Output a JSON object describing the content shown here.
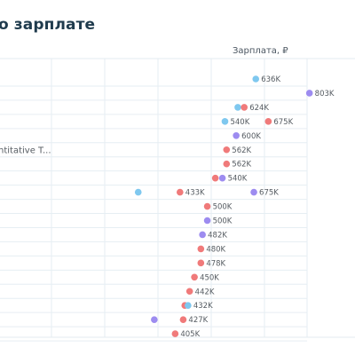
{
  "title": "о зарплате",
  "chart_data": {
    "type": "scatter",
    "title": "о зарплате",
    "xlabel": "Зарплата, ₽",
    "ylabel": "",
    "xlim": [
      0,
      1000000
    ],
    "grid": true,
    "colors": {
      "red": "#f07a7a",
      "blue": "#7fc8ef",
      "purple": "#9d8cf0"
    },
    "rows": [
      {
        "category": "",
        "label": "636K",
        "points": [
          {
            "value": 636000,
            "color": "blue"
          }
        ]
      },
      {
        "category": "",
        "label": "803K",
        "points": [
          {
            "value": 803000,
            "color": "purple"
          }
        ]
      },
      {
        "category": "",
        "label": "624K",
        "points": [
          {
            "value": 580000,
            "color": "blue"
          },
          {
            "value": 600000,
            "color": "red"
          }
        ]
      },
      {
        "category": "",
        "label": "675K",
        "extra_label": "540K",
        "points": [
          {
            "value": 540000,
            "color": "blue"
          },
          {
            "value": 675000,
            "color": "red"
          }
        ]
      },
      {
        "category": "",
        "label": "600K",
        "points": [
          {
            "value": 575000,
            "color": "purple"
          }
        ]
      },
      {
        "category": "ntitative T...",
        "label": "562K",
        "points": [
          {
            "value": 545000,
            "color": "red"
          }
        ]
      },
      {
        "category": "",
        "label": "562K",
        "points": [
          {
            "value": 545000,
            "color": "red"
          }
        ]
      },
      {
        "category": "",
        "label": "540K",
        "points": [
          {
            "value": 510000,
            "color": "red"
          },
          {
            "value": 532000,
            "color": "purple"
          }
        ]
      },
      {
        "category": "",
        "label": "675K",
        "extra_label": "433K",
        "points": [
          {
            "value": 270000,
            "color": "blue"
          },
          {
            "value": 400000,
            "color": "red"
          },
          {
            "value": 630000,
            "color": "purple"
          }
        ]
      },
      {
        "category": "",
        "label": "500K",
        "points": [
          {
            "value": 485000,
            "color": "red"
          }
        ]
      },
      {
        "category": "",
        "label": "500K",
        "points": [
          {
            "value": 485000,
            "color": "purple"
          }
        ]
      },
      {
        "category": "",
        "label": "482K",
        "points": [
          {
            "value": 470000,
            "color": "purple"
          }
        ]
      },
      {
        "category": "",
        "label": "480K",
        "points": [
          {
            "value": 465000,
            "color": "red"
          }
        ]
      },
      {
        "category": "",
        "label": "478K",
        "points": [
          {
            "value": 465000,
            "color": "red"
          }
        ]
      },
      {
        "category": "",
        "label": "450K",
        "points": [
          {
            "value": 445000,
            "color": "red"
          }
        ]
      },
      {
        "category": "",
        "label": "442K",
        "points": [
          {
            "value": 430000,
            "color": "red"
          }
        ]
      },
      {
        "category": "",
        "label": "432K",
        "points": [
          {
            "value": 415000,
            "color": "red"
          },
          {
            "value": 425000,
            "color": "blue"
          }
        ]
      },
      {
        "category": "",
        "label": "427K",
        "points": [
          {
            "value": 320000,
            "color": "purple"
          },
          {
            "value": 410000,
            "color": "red"
          }
        ]
      },
      {
        "category": "",
        "label": "405K",
        "points": [
          {
            "value": 385000,
            "color": "red"
          }
        ]
      }
    ]
  }
}
